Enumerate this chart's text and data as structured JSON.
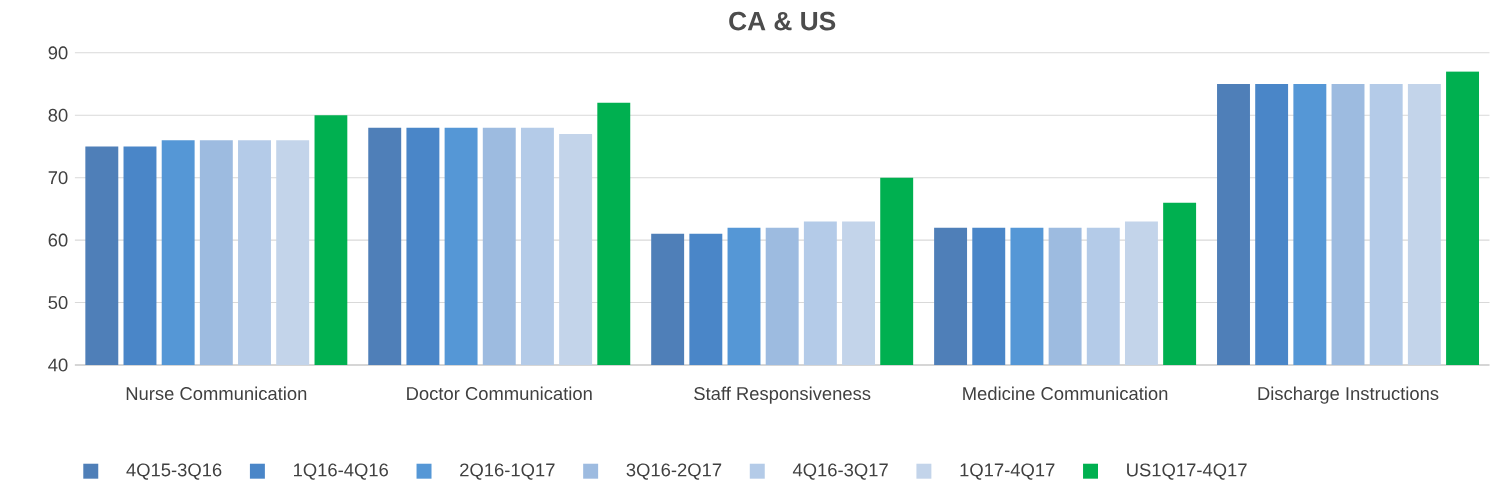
{
  "chart_data": {
    "type": "bar",
    "title": "CA & US",
    "categories": [
      "Nurse Communication",
      "Doctor Communication",
      "Staff Responsiveness",
      "Medicine Communication",
      "Discharge Instructions"
    ],
    "series": [
      {
        "name": "4Q15-3Q16",
        "color": "#4f7fb8",
        "values": [
          75,
          78,
          61,
          62,
          85
        ]
      },
      {
        "name": "1Q16-4Q16",
        "color": "#4a86c8",
        "values": [
          75,
          78,
          61,
          62,
          85
        ]
      },
      {
        "name": "2Q16-1Q17",
        "color": "#5597d6",
        "values": [
          76,
          78,
          62,
          62,
          85
        ]
      },
      {
        "name": "3Q16-2Q17",
        "color": "#9dbbe0",
        "values": [
          76,
          78,
          62,
          62,
          85
        ]
      },
      {
        "name": "4Q16-3Q17",
        "color": "#b4cbe8",
        "values": [
          76,
          78,
          63,
          62,
          85
        ]
      },
      {
        "name": "1Q17-4Q17",
        "color": "#c3d4ea",
        "values": [
          76,
          77,
          63,
          63,
          85
        ]
      },
      {
        "name": "US1Q17-4Q17",
        "color": "#00b050",
        "values": [
          80,
          82,
          70,
          66,
          87
        ]
      }
    ],
    "ylim": [
      40,
      90
    ],
    "yticks": [
      40,
      50,
      60,
      70,
      80,
      90
    ],
    "grid": "y",
    "legend": "bottom"
  }
}
